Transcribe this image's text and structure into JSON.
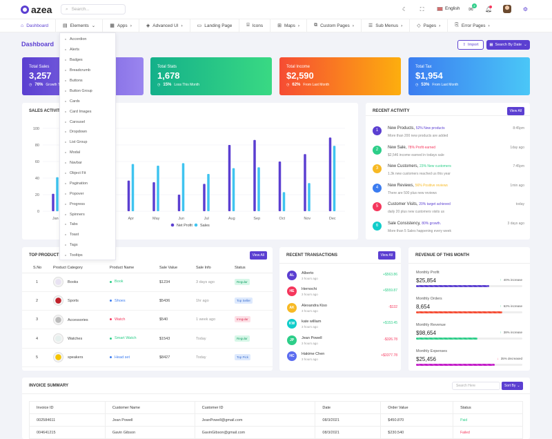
{
  "brand": {
    "name": "azea"
  },
  "search": {
    "placeholder": "Search..."
  },
  "topbar": {
    "language": "English",
    "mail_count": "2",
    "notif_count": "3"
  },
  "menu": [
    {
      "label": "Dashboard"
    },
    {
      "label": "Elements"
    },
    {
      "label": "Apps"
    },
    {
      "label": "Advanced UI"
    },
    {
      "label": "Landing Page"
    },
    {
      "label": "Icons"
    },
    {
      "label": "Maps"
    },
    {
      "label": "Custom Pages"
    },
    {
      "label": "Sub Menus"
    },
    {
      "label": "Pages"
    },
    {
      "label": "Error Pages"
    }
  ],
  "dropdown": [
    "Accordion",
    "Alerts",
    "Badges",
    "Breadcrumb",
    "Buttons",
    "Button Group",
    "Cards",
    "Card Images",
    "Carousel",
    "Dropdown",
    "List Group",
    "Modal",
    "Navbar",
    "Object Fit",
    "Pagination",
    "Popover",
    "Progress",
    "Spinners",
    "Tabs",
    "Toast",
    "Tags",
    "Tooltips"
  ],
  "page": {
    "title": "Dashboard",
    "import_label": "Import",
    "date_label": "Search By Date"
  },
  "stats": [
    {
      "label": "Total Sales",
      "value": "3,257",
      "pct": "76%",
      "note": "Growth This Month",
      "color1": "#5a3fd0",
      "color2": "#9a85ef"
    },
    {
      "label": "Total Stats",
      "value": "1,678",
      "pct": "15%",
      "note": "Loss This Month",
      "color1": "#14b08a",
      "color2": "#39d983"
    },
    {
      "label": "Total Income",
      "value": "$2,590",
      "pct": "62%",
      "note": "From Last Month",
      "color1": "#f64c33",
      "color2": "#fdae0e"
    },
    {
      "label": "Total Tax",
      "value": "$1,954",
      "pct": "53%",
      "note": "From Last Month",
      "color1": "#3b7cf0",
      "color2": "#4ac7f7"
    }
  ],
  "sales": {
    "title": "SALES ACTIVITY"
  },
  "chart_data": {
    "type": "bar",
    "categories": [
      "Jan",
      "Feb",
      "Mar",
      "Apr",
      "May",
      "Jun",
      "Jul",
      "Aug",
      "Sep",
      "Oct",
      "Nov",
      "Dec"
    ],
    "series": [
      {
        "name": "Net Profit",
        "color": "#5b3fd1",
        "values": [
          21,
          null,
          null,
          37,
          35,
          20,
          33,
          80,
          86,
          60,
          69,
          89
        ]
      },
      {
        "name": "Sales",
        "color": "#3fc4f0",
        "values": [
          41,
          null,
          null,
          57,
          55,
          58,
          45,
          52,
          53,
          23,
          34,
          79
        ]
      }
    ],
    "ylim": [
      0,
      100
    ],
    "yticks": [
      0,
      20,
      40,
      60,
      80,
      100
    ]
  },
  "activity": {
    "title": "RECENT ACTIVITY",
    "view_all": "View All",
    "items": [
      {
        "num": "1",
        "color": "#5b3fd1",
        "title": "New Products,",
        "highlight": "52% New products",
        "hcolor": "#5b3fd1",
        "sub": "More than 200 new products are added",
        "time": "8:45pm"
      },
      {
        "num": "2",
        "color": "#2dce89",
        "title": "New Sale,",
        "highlight": "78% Profit earned",
        "hcolor": "#f5365c",
        "sub": "$2,546 income earned in todays sale",
        "time": "1day ago"
      },
      {
        "num": "3",
        "color": "#f7b924",
        "title": "New Customers,",
        "highlight": "23% New customers",
        "hcolor": "#2dce89",
        "sub": "1.3k new customers reached us this year",
        "time": "7:45pm"
      },
      {
        "num": "4",
        "color": "#3b7cf0",
        "title": "New Reviews,",
        "highlight": "56% Positive reviews",
        "hcolor": "#f7b924",
        "sub": "There are 500 plus new reviews",
        "time": "1min ago"
      },
      {
        "num": "5",
        "color": "#f5365c",
        "title": "Customer Visits,",
        "highlight": "20% target achieved",
        "hcolor": "#5b3fd1",
        "sub": "daily 20 plus new customers visits us",
        "time": "today"
      },
      {
        "num": "6",
        "color": "#11cdca",
        "title": "Sale Consistency,",
        "highlight": "80% growth.",
        "hcolor": "#5b3fd1",
        "sub": "More than 5 Sales happening every week",
        "time": "3 days ago"
      }
    ]
  },
  "products": {
    "title": "TOP PRODUCTS",
    "view_all": "View All",
    "headers": [
      "S.No",
      "Product Category",
      "Product Name",
      "Sale Value",
      "Sale Info",
      "Status"
    ],
    "rows": [
      {
        "no": "1",
        "category": "Books",
        "name": "Book",
        "dot": "#2dce89",
        "value": "$1234",
        "info": "3 days ago",
        "status": "Regular",
        "sbg": "#d7f7e8",
        "sfg": "#1aa26a",
        "img": "#e8e2f2"
      },
      {
        "no": "2",
        "category": "Sports",
        "name": "Shoes",
        "dot": "#3b7cf0",
        "value": "$5436",
        "info": "1hr ago",
        "status": "Top Seller",
        "sbg": "#dde9fd",
        "sfg": "#3b6fd0",
        "img": "#c0202a"
      },
      {
        "no": "3",
        "category": "Accessories",
        "name": "Watch",
        "dot": "#f5365c",
        "value": "$540",
        "info": "1 week ago",
        "status": "Irregular",
        "sbg": "#fde0e6",
        "sfg": "#d92d51",
        "img": "#bbbbbb"
      },
      {
        "no": "4",
        "category": "Watches",
        "name": "Smart Watch",
        "dot": "#2dce89",
        "value": "$1543",
        "info": "Today",
        "status": "Regular",
        "sbg": "#d7f7e8",
        "sfg": "#1aa26a",
        "img": "#e6f0ee"
      },
      {
        "no": "5",
        "category": "speakers",
        "name": "Head set",
        "dot": "#3b7cf0",
        "value": "$8427",
        "info": "Today",
        "status": "Top Pick",
        "sbg": "#dde9fd",
        "sfg": "#3b6fd0",
        "img": "#f5c400"
      }
    ]
  },
  "transactions": {
    "title": "RECENT TRANSACTIONS",
    "view_all": "View All",
    "items": [
      {
        "initials": "AL",
        "color": "#5b3fd1",
        "name": "Alberto",
        "time": "3 hours ago",
        "amount": "+$563.86",
        "acolor": "#2dce89"
      },
      {
        "initials": "HE",
        "color": "#f5365c",
        "name": "Hernochi",
        "time": "3 hours ago",
        "amount": "+$559.87",
        "acolor": "#2dce89"
      },
      {
        "initials": "AK",
        "color": "#f7b924",
        "name": "Alexandra Kiso",
        "time": "3 hours ago",
        "amount": "-$132",
        "acolor": "#f5365c"
      },
      {
        "initials": "KW",
        "color": "#11cdca",
        "name": "kate william",
        "time": "3 hours ago",
        "amount": "+$153.45",
        "acolor": "#2dce89"
      },
      {
        "initials": "JP",
        "color": "#2dce89",
        "name": "Jean Powell",
        "time": "3 hours ago",
        "amount": "-$326.78",
        "acolor": "#f5365c"
      },
      {
        "initials": "HC",
        "color": "#5b6cf0",
        "name": "Hakime Chen",
        "time": "3 hours ago",
        "amount": "+$3377.78",
        "acolor": "#f5365c"
      }
    ]
  },
  "revenue": {
    "title": "REVENUE OF THIS MONTH",
    "items": [
      {
        "label": "Monthly Profit",
        "value": "$25,854",
        "pct": "40% increase",
        "arrow": "↑",
        "acolor": "#2dce89",
        "fill": 0.69,
        "color": "#5b3fd1"
      },
      {
        "label": "Monthly Orders",
        "value": "8,654",
        "pct": "62% increase",
        "arrow": "↑",
        "acolor": "#2dce89",
        "fill": 0.81,
        "color": "#f64c33"
      },
      {
        "label": "Monthly Revenue",
        "value": "$98,654",
        "pct": "38% increase",
        "arrow": "↑",
        "acolor": "#2dce89",
        "fill": 0.58,
        "color": "#2dce89"
      },
      {
        "label": "Monthly Expenses",
        "value": "$25,456",
        "pct": "35% decreased",
        "arrow": "↓",
        "acolor": "#f5365c",
        "fill": 0.74,
        "color": "#c31ac8"
      }
    ]
  },
  "invoice": {
    "title": "INVOICE SUMMARY",
    "search_placeholder": "Search Here",
    "sort_label": "Sort By",
    "headers": [
      "Invoice ID",
      "Customer Name",
      "Customer ID",
      "Date",
      "Order Value",
      "Status"
    ],
    "rows": [
      {
        "id": "002584611",
        "name": "Jean Powell",
        "cid": "JeanPowell@gmail.com",
        "date": "08/3/2021",
        "value": "$450.870",
        "status": "Paid",
        "scolor": "#2dce89"
      },
      {
        "id": "004641215",
        "name": "Gavin Gibson",
        "cid": "GavinGibson@gmail.com",
        "date": "08/3/2021",
        "value": "$230.540",
        "status": "Failed",
        "scolor": "#f5365c"
      }
    ]
  }
}
